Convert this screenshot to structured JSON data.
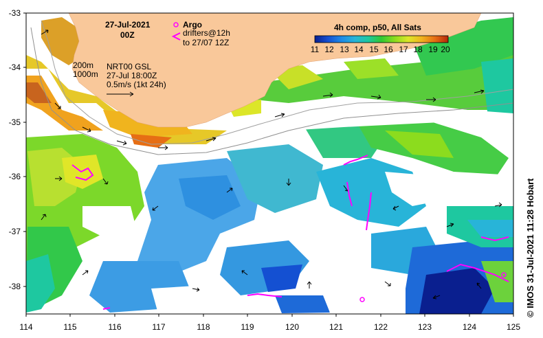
{
  "title": {
    "date": "27-Jul-2021",
    "hour": "00Z"
  },
  "legend": {
    "argo_label": "Argo",
    "drifter_label_1": "drifters@12h",
    "drifter_label_2": "to 27/07 12Z",
    "isobath_200": "200m",
    "isobath_1000": "1000m",
    "product_1": "NRT00 GSL",
    "product_2": "27-Jul 18:00Z",
    "vector_scale": "0.5m/s (1kt 24h)"
  },
  "colorbar": {
    "title": "4h comp, p50, All Sats",
    "ticks": [
      "11",
      "12",
      "13",
      "14",
      "15",
      "16",
      "17",
      "18",
      "19",
      "20"
    ],
    "colors": [
      "#0a1f8f",
      "#1450d2",
      "#1e8ae6",
      "#28b4d8",
      "#1ec8a0",
      "#32c832",
      "#8cdc1e",
      "#dce628",
      "#f0b41e",
      "#e66e14",
      "#b4280a"
    ]
  },
  "axes": {
    "x_ticks": [
      "114",
      "115",
      "116",
      "117",
      "118",
      "119",
      "120",
      "121",
      "122",
      "123",
      "124",
      "125"
    ],
    "y_ticks": [
      "-33",
      "-34",
      "-35",
      "-36",
      "-37",
      "-38"
    ]
  },
  "credit": "© IMOS 31-Jul-2021 11:28 Hobart",
  "colors": {
    "land": "#f9c89a",
    "drifter": "#ff00ff",
    "frame": "#000000"
  }
}
